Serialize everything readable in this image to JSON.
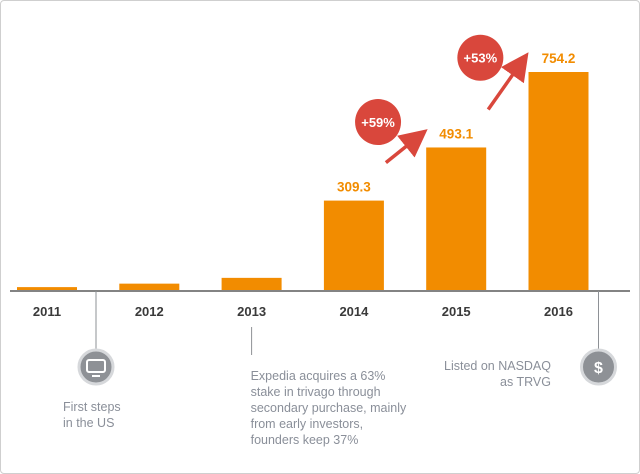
{
  "chart_data": {
    "type": "bar",
    "categories": [
      "2011",
      "2012",
      "2013",
      "2014",
      "2015",
      "2016"
    ],
    "values": [
      10,
      22,
      42,
      309.3,
      493.1,
      754.2
    ],
    "value_labels": [
      "",
      "",
      "",
      "309.3",
      "493.1",
      "754.2"
    ],
    "title": "",
    "xlabel": "",
    "ylabel": "",
    "ylim": [
      0,
      800
    ],
    "grid": false,
    "growth_badges": [
      {
        "label": "+59%",
        "from": "2014",
        "to": "2015"
      },
      {
        "label": "+53%",
        "from": "2015",
        "to": "2016"
      }
    ]
  },
  "annotations": [
    {
      "year": "2011",
      "icon": "tv-icon",
      "text": "First steps\nin the US"
    },
    {
      "year": "2013",
      "icon": "",
      "text": "Expedia acquires a 63%\nstake in trivago through\nsecondary purchase, mainly\nfrom early investors,\nfounders keep 37%"
    },
    {
      "year": "2016",
      "icon": "dollar-icon",
      "text": "Listed on NASDAQ\nas TRVG"
    }
  ],
  "colors": {
    "bar": "#f28c00",
    "value_label": "#f28c00",
    "badge": "#d9473c",
    "arrow": "#d9473c",
    "axis": "#5a5a5a",
    "tick_label": "#3a3a3a",
    "note_text": "#8a8f99",
    "icon_bg": "#8e9196"
  }
}
